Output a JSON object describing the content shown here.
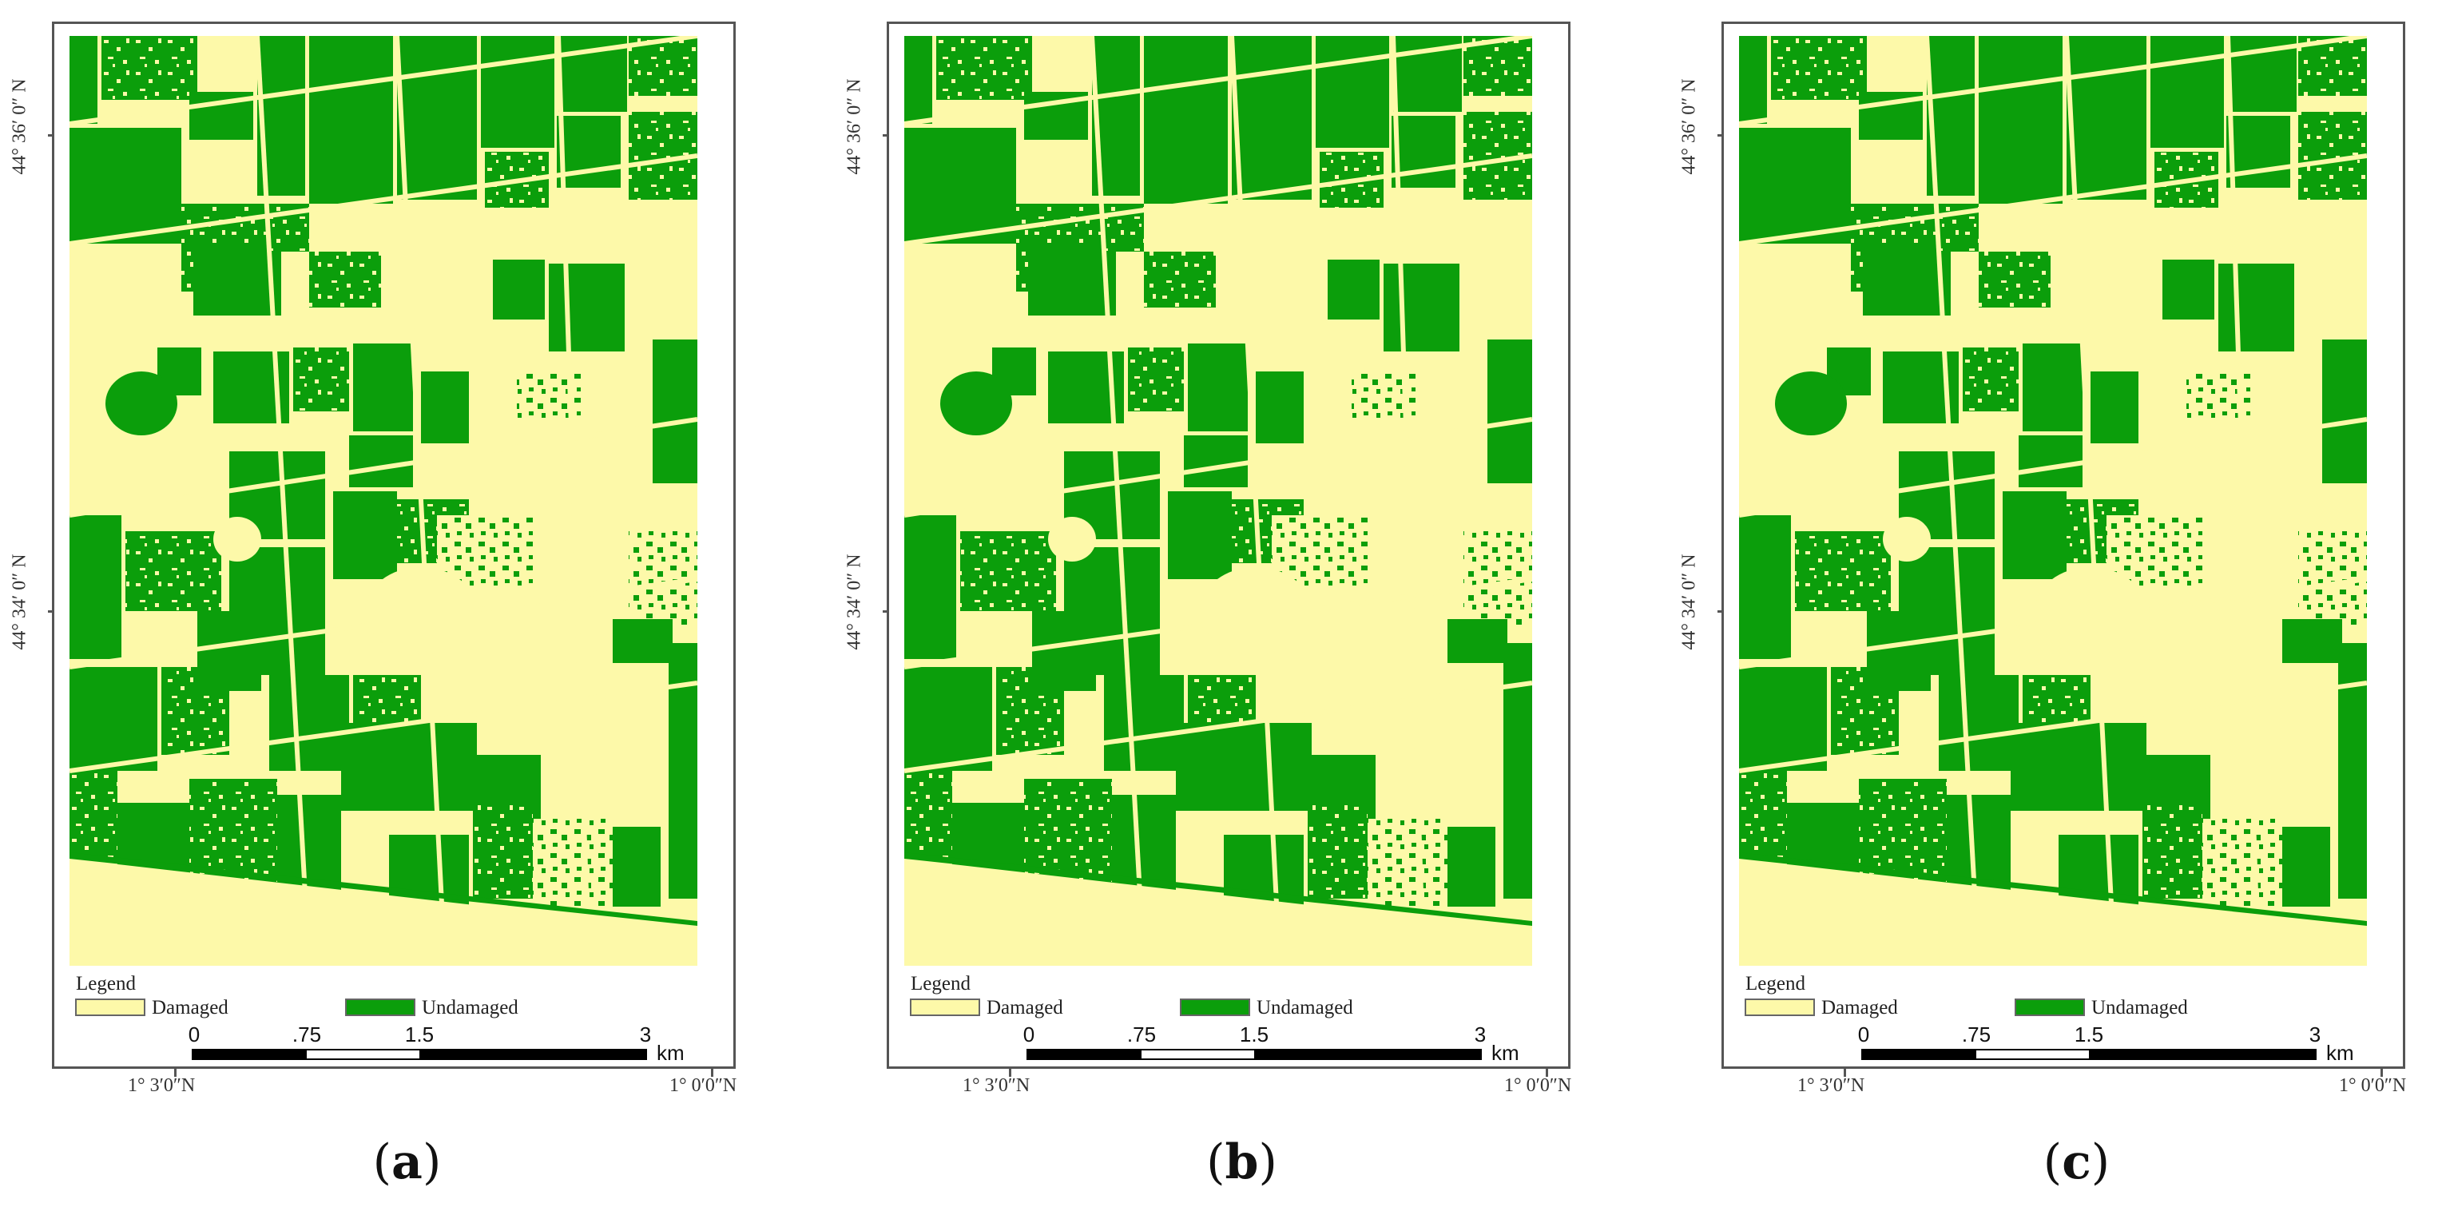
{
  "panels": [
    {
      "id": "a",
      "caption_letter": "a"
    },
    {
      "id": "b",
      "caption_letter": "b"
    },
    {
      "id": "c",
      "caption_letter": "c"
    }
  ],
  "axes": {
    "lat_top": "44° 36′ 0″ N",
    "lat_bottom": "44° 34′ 0″ N",
    "lon_left": "1° 3′0″N",
    "lon_right": "1° 0′0″N"
  },
  "legend": {
    "title": "Legend",
    "items": [
      {
        "label": "Damaged",
        "color": "#fdf9a9"
      },
      {
        "label": "Undamaged",
        "color": "#0b9e0b"
      }
    ]
  },
  "scale": {
    "ticks": [
      "0",
      ".75",
      "1.5",
      "3"
    ],
    "unit": "km"
  },
  "caption": {
    "open": "(",
    "close": ")"
  }
}
